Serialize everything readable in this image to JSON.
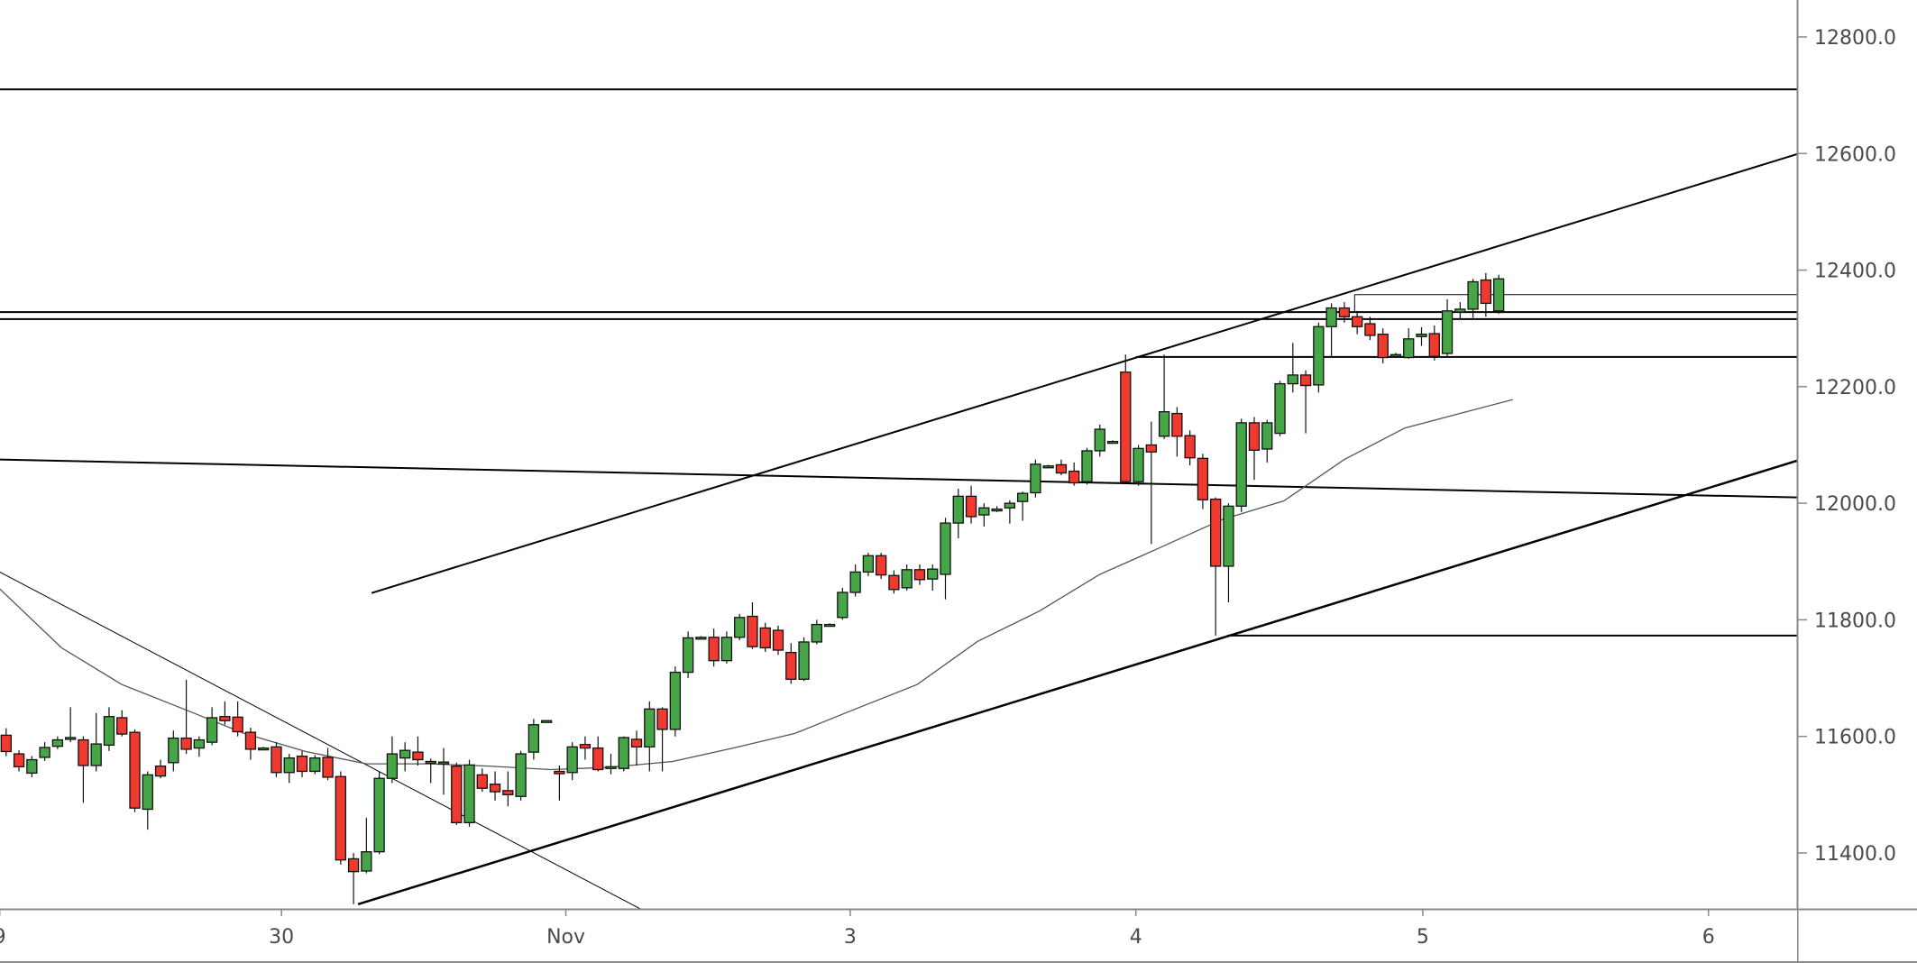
{
  "chart_data": {
    "type": "candlestick",
    "title": "",
    "colors": {
      "up": "#46a546",
      "down": "#f0392f",
      "outline": "#111111",
      "ma": "#555555",
      "axis": "#888888"
    },
    "ylim": [
      11300,
      12840
    ],
    "y_ticks": [
      11400,
      11600,
      11800,
      12000,
      12200,
      12400,
      12600,
      12800
    ],
    "y_tick_labels": [
      "11400.0",
      "11600.0",
      "11800.0",
      "12000.0",
      "12200.0",
      "12400.0",
      "12600.0",
      "12800.0"
    ],
    "x_unit": "bar index",
    "x_ticks": [
      {
        "label": "9",
        "bar": -0.5
      },
      {
        "label": "30",
        "bar": 21.4
      },
      {
        "label": "Nov",
        "bar": 43.5
      },
      {
        "label": "3",
        "bar": 65.6
      },
      {
        "label": "4",
        "bar": 87.8
      },
      {
        "label": "5",
        "bar": 110.1
      },
      {
        "label": "6",
        "bar": 132.3
      }
    ],
    "candles_ohlc": [
      [
        11602,
        11614,
        11566,
        11574
      ],
      [
        11570,
        11576,
        11540,
        11548
      ],
      [
        11537,
        11566,
        11530,
        11560
      ],
      [
        11564,
        11590,
        11558,
        11581
      ],
      [
        11583,
        11600,
        11578,
        11594
      ],
      [
        11596,
        11650,
        11590,
        11598
      ],
      [
        11594,
        11600,
        11486,
        11550
      ],
      [
        11550,
        11640,
        11540,
        11587
      ],
      [
        11585,
        11650,
        11575,
        11634
      ],
      [
        11632,
        11645,
        11600,
        11604
      ],
      [
        11607,
        11612,
        11470,
        11477
      ],
      [
        11475,
        11540,
        11440,
        11534
      ],
      [
        11549,
        11560,
        11528,
        11532
      ],
      [
        11555,
        11610,
        11540,
        11597
      ],
      [
        11597,
        11697,
        11570,
        11578
      ],
      [
        11580,
        11600,
        11565,
        11594
      ],
      [
        11590,
        11650,
        11585,
        11632
      ],
      [
        11634,
        11660,
        11620,
        11627
      ],
      [
        11633,
        11660,
        11600,
        11608
      ],
      [
        11607,
        11615,
        11560,
        11578
      ],
      [
        11580,
        11582,
        11578,
        11580
      ],
      [
        11582,
        11590,
        11530,
        11538
      ],
      [
        11538,
        11570,
        11520,
        11563
      ],
      [
        11566,
        11575,
        11530,
        11540
      ],
      [
        11540,
        11568,
        11535,
        11563
      ],
      [
        11564,
        11580,
        11525,
        11530
      ],
      [
        11531,
        11540,
        11380,
        11388
      ],
      [
        11390,
        11400,
        11312,
        11368
      ],
      [
        11369,
        11460,
        11365,
        11402
      ],
      [
        11402,
        11540,
        11398,
        11528
      ],
      [
        11528,
        11600,
        11520,
        11570
      ],
      [
        11563,
        11590,
        11540,
        11576
      ],
      [
        11573,
        11600,
        11550,
        11560
      ],
      [
        11557,
        11562,
        11520,
        11557
      ],
      [
        11556,
        11580,
        11500,
        11556
      ],
      [
        11549,
        11555,
        11448,
        11452
      ],
      [
        11452,
        11560,
        11445,
        11551
      ],
      [
        11534,
        11545,
        11505,
        11511
      ],
      [
        11518,
        11540,
        11490,
        11505
      ],
      [
        11507,
        11540,
        11480,
        11500
      ],
      [
        11497,
        11575,
        11490,
        11570
      ],
      [
        11573,
        11630,
        11560,
        11620
      ],
      [
        11627,
        11628,
        11626,
        11627
      ],
      [
        11540,
        11550,
        11490,
        11536
      ],
      [
        11538,
        11590,
        11525,
        11582
      ],
      [
        11586,
        11600,
        11560,
        11580
      ],
      [
        11580,
        11600,
        11540,
        11543
      ],
      [
        11548,
        11570,
        11535,
        11548
      ],
      [
        11545,
        11600,
        11540,
        11598
      ],
      [
        11595,
        11610,
        11550,
        11582
      ],
      [
        11582,
        11660,
        11540,
        11647
      ],
      [
        11647,
        11650,
        11540,
        11612
      ],
      [
        11612,
        11720,
        11600,
        11710
      ],
      [
        11710,
        11780,
        11700,
        11769
      ],
      [
        11770,
        11772,
        11768,
        11770
      ],
      [
        11770,
        11785,
        11720,
        11730
      ],
      [
        11730,
        11780,
        11725,
        11770
      ],
      [
        11770,
        11810,
        11765,
        11804
      ],
      [
        11806,
        11830,
        11750,
        11754
      ],
      [
        11786,
        11795,
        11745,
        11752
      ],
      [
        11782,
        11790,
        11740,
        11748
      ],
      [
        11744,
        11760,
        11690,
        11698
      ],
      [
        11698,
        11770,
        11695,
        11762
      ],
      [
        11762,
        11800,
        11758,
        11792
      ],
      [
        11792,
        11794,
        11790,
        11792
      ],
      [
        11804,
        11855,
        11800,
        11847
      ],
      [
        11847,
        11895,
        11840,
        11882
      ],
      [
        11882,
        11915,
        11875,
        11910
      ],
      [
        11910,
        11915,
        11870,
        11877
      ],
      [
        11876,
        11885,
        11845,
        11852
      ],
      [
        11855,
        11895,
        11850,
        11886
      ],
      [
        11886,
        11895,
        11860,
        11869
      ],
      [
        11870,
        11895,
        11850,
        11887
      ],
      [
        11878,
        11975,
        11835,
        11966
      ],
      [
        11966,
        12025,
        11940,
        12012
      ],
      [
        12012,
        12030,
        11965,
        11977
      ],
      [
        11980,
        12000,
        11960,
        11992
      ],
      [
        11990,
        11995,
        11985,
        11990
      ],
      [
        11992,
        12005,
        11965,
        12000
      ],
      [
        12003,
        12020,
        11970,
        12017
      ],
      [
        12018,
        12075,
        12010,
        12067
      ],
      [
        12064,
        12066,
        12062,
        12064
      ],
      [
        12066,
        12075,
        12048,
        12052
      ],
      [
        12055,
        12070,
        12030,
        12035
      ],
      [
        12037,
        12095,
        12032,
        12090
      ],
      [
        12090,
        12135,
        12080,
        12127
      ],
      [
        12106,
        12108,
        12104,
        12106
      ],
      [
        12225,
        12255,
        12035,
        12037
      ],
      [
        12037,
        12100,
        12030,
        12094
      ],
      [
        12100,
        12140,
        11930,
        12088
      ],
      [
        12115,
        12255,
        12110,
        12157
      ],
      [
        12154,
        12165,
        12080,
        12115
      ],
      [
        12116,
        12125,
        12065,
        12078
      ],
      [
        12077,
        12085,
        11990,
        12006
      ],
      [
        12007,
        12010,
        11773,
        11892
      ],
      [
        11892,
        12000,
        11830,
        11995
      ],
      [
        11995,
        12145,
        11985,
        12138
      ],
      [
        12138,
        12148,
        12040,
        12091
      ],
      [
        12093,
        12143,
        12070,
        12138
      ],
      [
        12120,
        12210,
        12115,
        12205
      ],
      [
        12205,
        12275,
        12190,
        12220
      ],
      [
        12220,
        12228,
        12120,
        12202
      ],
      [
        12203,
        12310,
        12190,
        12303
      ],
      [
        12303,
        12343,
        12250,
        12335
      ],
      [
        12335,
        12345,
        12310,
        12320
      ],
      [
        12320,
        12330,
        12290,
        12303
      ],
      [
        12308,
        12320,
        12280,
        12288
      ],
      [
        12290,
        12300,
        12240,
        12250
      ],
      [
        12255,
        12258,
        12253,
        12255
      ],
      [
        12250,
        12300,
        12248,
        12282
      ],
      [
        12286,
        12302,
        12270,
        12290
      ],
      [
        12291,
        12305,
        12245,
        12252
      ],
      [
        12257,
        12350,
        12252,
        12330
      ],
      [
        12328,
        12345,
        12315,
        12333
      ],
      [
        12333,
        12385,
        12318,
        12380
      ],
      [
        12383,
        12395,
        12320,
        12343
      ],
      [
        12330,
        12392,
        12325,
        12385
      ]
    ],
    "moving_average": [
      [
        -0.5,
        11853
      ],
      [
        4.3,
        11752
      ],
      [
        9.0,
        11689
      ],
      [
        13.8,
        11647
      ],
      [
        18.5,
        11605
      ],
      [
        23.3,
        11574
      ],
      [
        28.0,
        11553
      ],
      [
        32.8,
        11553
      ],
      [
        37.5,
        11549
      ],
      [
        42.3,
        11543
      ],
      [
        47.0,
        11547
      ],
      [
        51.8,
        11557
      ],
      [
        56.5,
        11580
      ],
      [
        61.3,
        11605
      ],
      [
        66.0,
        11647
      ],
      [
        70.8,
        11689
      ],
      [
        75.5,
        11763
      ],
      [
        80.3,
        11815
      ],
      [
        85.0,
        11878
      ],
      [
        89.7,
        11924
      ],
      [
        94.5,
        11972
      ],
      [
        99.3,
        12004
      ],
      [
        104.0,
        12075
      ],
      [
        108.7,
        12129
      ],
      [
        113.5,
        12157
      ],
      [
        117.1,
        12178
      ]
    ],
    "drawings": [
      {
        "name": "horizontal-line-12710",
        "kind": "hline",
        "from": -1,
        "price": 12710,
        "width": 2
      },
      {
        "name": "horizontal-line-12328",
        "kind": "hline",
        "from": -1,
        "price": 12328,
        "width": 2
      },
      {
        "name": "horizontal-line-12316",
        "kind": "hline",
        "from": -1,
        "price": 12316,
        "width": 2
      },
      {
        "name": "horizontal-line-12358",
        "kind": "hline",
        "from": 104.8,
        "price": 12358,
        "width": 1
      },
      {
        "name": "horizontal-line-12251",
        "kind": "hline",
        "from": 87.8,
        "price": 12251,
        "width": 2
      },
      {
        "name": "horizontal-line-11773",
        "kind": "hline",
        "from": 94.9,
        "price": 11773,
        "width": 2
      },
      {
        "name": "upper-channel-line",
        "kind": "line",
        "p1": [
          28.4,
          11846
        ],
        "p2": [
          139.2,
          12599
        ],
        "width": 2
      },
      {
        "name": "lower-channel-line",
        "kind": "line",
        "p1": [
          27.35,
          11312
        ],
        "p2": [
          139.2,
          12073
        ],
        "width": 2.5
      },
      {
        "name": "flat-trend-line",
        "kind": "line",
        "p1": [
          -0.5,
          12075
        ],
        "p2": [
          139.2,
          12010
        ],
        "width": 2
      },
      {
        "name": "downtrend-line",
        "kind": "line",
        "p1": [
          -0.5,
          11882
        ],
        "p2": [
          49.3,
          11304
        ],
        "width": 1
      }
    ]
  }
}
